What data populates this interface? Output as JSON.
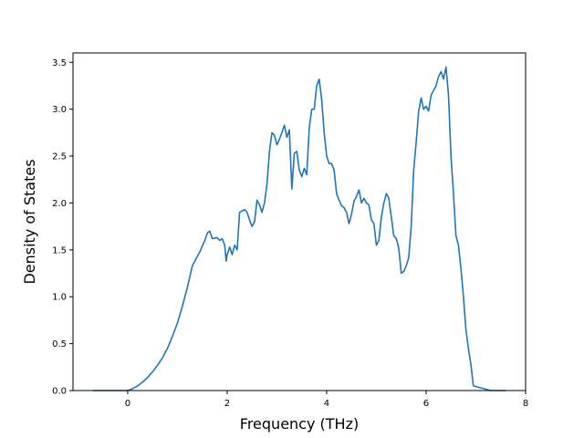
{
  "chart_data": {
    "type": "line",
    "title": "",
    "xlabel": "Frequency (THz)",
    "ylabel": "Density of States",
    "xlim": [
      -1.1,
      8.0
    ],
    "ylim": [
      0.0,
      3.6
    ],
    "xticks": [
      0,
      2,
      4,
      6,
      8
    ],
    "yticks": [
      0.0,
      0.5,
      1.0,
      1.5,
      2.0,
      2.5,
      3.0,
      3.5
    ],
    "xtick_labels": [
      "0",
      "2",
      "4",
      "6",
      "8"
    ],
    "ytick_labels": [
      "0.0",
      "0.5",
      "1.0",
      "1.5",
      "2.0",
      "2.5",
      "3.0",
      "3.5"
    ],
    "grid": false,
    "line_color": "#1f77b4",
    "series": [
      {
        "x": [
          -0.7,
          -0.3,
          0.0,
          0.1,
          0.2,
          0.3,
          0.4,
          0.5,
          0.6,
          0.7,
          0.8,
          0.9,
          1.0,
          1.1,
          1.2,
          1.3,
          1.35,
          1.45,
          1.55,
          1.6,
          1.65,
          1.7,
          1.8,
          1.85,
          1.9,
          1.95,
          1.98,
          2.0,
          2.05,
          2.1,
          2.15,
          2.2,
          2.25,
          2.35,
          2.4,
          2.45,
          2.5,
          2.55,
          2.6,
          2.65,
          2.7,
          2.75,
          2.8,
          2.85,
          2.9,
          2.95,
          3.0,
          3.05,
          3.1,
          3.15,
          3.2,
          3.25,
          3.3,
          3.35,
          3.4,
          3.45,
          3.5,
          3.55,
          3.6,
          3.65,
          3.7,
          3.75,
          3.8,
          3.85,
          3.9,
          3.95,
          4.0,
          4.05,
          4.1,
          4.15,
          4.2,
          4.25,
          4.3,
          4.35,
          4.4,
          4.45,
          4.5,
          4.55,
          4.6,
          4.65,
          4.7,
          4.75,
          4.8,
          4.85,
          4.9,
          4.95,
          5.0,
          5.05,
          5.1,
          5.15,
          5.2,
          5.25,
          5.3,
          5.35,
          5.4,
          5.45,
          5.5,
          5.55,
          5.6,
          5.65,
          5.7,
          5.75,
          5.8,
          5.85,
          5.9,
          5.95,
          6.0,
          6.05,
          6.1,
          6.15,
          6.2,
          6.25,
          6.3,
          6.35,
          6.4,
          6.45,
          6.5,
          6.55,
          6.6,
          6.65,
          6.7,
          6.75,
          6.8,
          6.85,
          6.9,
          6.95,
          7.3,
          7.6
        ],
        "y": [
          0.0,
          0.0,
          0.0,
          0.02,
          0.05,
          0.09,
          0.14,
          0.2,
          0.27,
          0.35,
          0.45,
          0.58,
          0.72,
          0.9,
          1.1,
          1.33,
          1.38,
          1.48,
          1.6,
          1.68,
          1.7,
          1.62,
          1.63,
          1.6,
          1.62,
          1.55,
          1.38,
          1.45,
          1.53,
          1.45,
          1.55,
          1.5,
          1.9,
          1.93,
          1.9,
          1.82,
          1.75,
          1.8,
          2.03,
          1.98,
          1.9,
          2.0,
          2.2,
          2.55,
          2.75,
          2.72,
          2.62,
          2.68,
          2.75,
          2.83,
          2.7,
          2.78,
          2.15,
          2.53,
          2.55,
          2.35,
          2.28,
          2.37,
          2.3,
          2.8,
          3.0,
          3.0,
          3.25,
          3.32,
          3.1,
          2.75,
          2.5,
          2.42,
          2.42,
          2.35,
          2.1,
          2.03,
          1.97,
          1.95,
          1.9,
          1.78,
          1.88,
          2.02,
          2.07,
          2.14,
          2.0,
          2.05,
          2.0,
          1.98,
          1.82,
          1.78,
          1.55,
          1.6,
          1.85,
          2.0,
          2.1,
          2.05,
          1.85,
          1.65,
          1.62,
          1.52,
          1.25,
          1.27,
          1.33,
          1.42,
          1.75,
          2.35,
          2.65,
          2.98,
          3.12,
          3.0,
          3.03,
          2.98,
          3.15,
          3.2,
          3.25,
          3.35,
          3.4,
          3.32,
          3.45,
          3.15,
          2.5,
          2.1,
          1.65,
          1.55,
          1.3,
          1.0,
          0.65,
          0.45,
          0.28,
          0.05,
          0.0,
          0.0
        ]
      }
    ]
  }
}
